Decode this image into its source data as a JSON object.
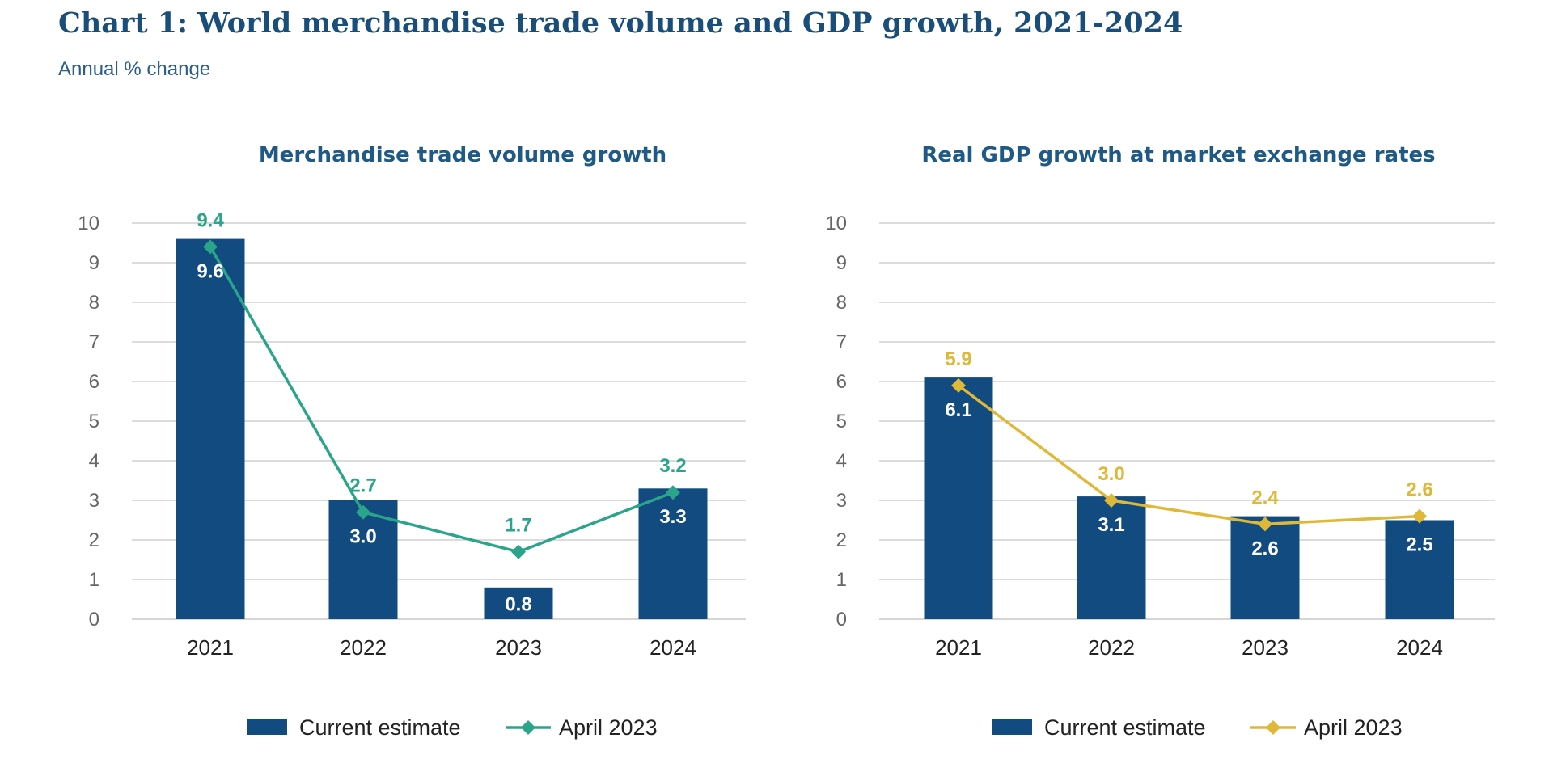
{
  "title": "Chart 1: World merchandise trade volume and GDP growth, 2021-2024",
  "subtitle": "Annual % change",
  "colors": {
    "bar": "#114b80",
    "grid": "#c8c8c8",
    "trade_line": "#2aa58a",
    "gdp_line": "#dfb838"
  },
  "chart_data": [
    {
      "type": "bar",
      "title": "Merchandise trade volume growth",
      "categories": [
        "2021",
        "2022",
        "2023",
        "2024"
      ],
      "ylim": [
        0,
        10
      ],
      "yticks": [
        0,
        1,
        2,
        3,
        4,
        5,
        6,
        7,
        8,
        9,
        10
      ],
      "grid": true,
      "legend_position": "bottom-center",
      "series": [
        {
          "name": "Current estimate",
          "kind": "bar",
          "values": [
            9.6,
            3.0,
            0.8,
            3.3
          ],
          "labels": [
            "9.6",
            "3.0",
            "0.8",
            "3.3"
          ]
        },
        {
          "name": "April 2023",
          "kind": "line",
          "values": [
            9.4,
            2.7,
            1.7,
            3.2
          ],
          "labels": [
            "9.4",
            "2.7",
            "1.7",
            "3.2"
          ]
        }
      ]
    },
    {
      "type": "bar",
      "title": "Real GDP growth at market exchange rates",
      "categories": [
        "2021",
        "2022",
        "2023",
        "2024"
      ],
      "ylim": [
        0,
        10
      ],
      "yticks": [
        0,
        1,
        2,
        3,
        4,
        5,
        6,
        7,
        8,
        9,
        10
      ],
      "grid": true,
      "legend_position": "bottom-center",
      "series": [
        {
          "name": "Current estimate",
          "kind": "bar",
          "values": [
            6.1,
            3.1,
            2.6,
            2.5
          ],
          "labels": [
            "6.1",
            "3.1",
            "2.6",
            "2.5"
          ]
        },
        {
          "name": "April 2023",
          "kind": "line",
          "values": [
            5.9,
            3.0,
            2.4,
            2.6
          ],
          "labels": [
            "5.9",
            "3.0",
            "2.4",
            "2.6"
          ]
        }
      ]
    }
  ]
}
